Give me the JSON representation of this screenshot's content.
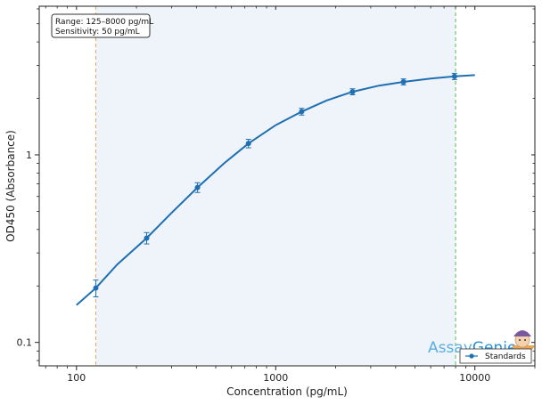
{
  "chart_data": {
    "type": "scatter",
    "title": "",
    "xlabel": "Concentration (pg/mL)",
    "ylabel": "OD450 (Absorbance)",
    "x_scale": "log",
    "y_scale": "log",
    "xlim": [
      65,
      20000
    ],
    "ylim": [
      0.075,
      6.2
    ],
    "x_ticks": [
      {
        "value": 100,
        "label": "100"
      },
      {
        "value": 1000,
        "label": "1000"
      },
      {
        "value": 10000,
        "label": "10000"
      }
    ],
    "y_ticks": [
      {
        "value": 0.1,
        "label": "0.1"
      },
      {
        "value": 1,
        "label": "1"
      }
    ],
    "grid": false,
    "legend_position": "bottom-right",
    "series": [
      {
        "name": "Standards",
        "type": "scatter",
        "color": "#1f6fb2",
        "x": [
          125,
          225,
          405,
          730,
          1350,
          2430,
          4380,
          7900
        ],
        "y": [
          0.195,
          0.36,
          0.67,
          1.15,
          1.7,
          2.17,
          2.45,
          2.62
        ],
        "error": [
          0.02,
          0.025,
          0.04,
          0.06,
          0.07,
          0.08,
          0.09,
          0.1
        ]
      },
      {
        "name": "",
        "type": "line",
        "color": "#1f6fb2",
        "x": [
          100,
          125,
          160,
          225,
          300,
          405,
          550,
          730,
          1000,
          1350,
          1800,
          2430,
          3300,
          4380,
          6000,
          7900,
          10000
        ],
        "y": [
          0.158,
          0.195,
          0.26,
          0.36,
          0.49,
          0.67,
          0.9,
          1.15,
          1.44,
          1.7,
          1.95,
          2.17,
          2.34,
          2.45,
          2.55,
          2.62,
          2.66
        ]
      }
    ],
    "shaded_range": {
      "x_min": 125,
      "x_max": 8000,
      "color": "#eef4fa"
    },
    "reference_lines": [
      {
        "x": 125,
        "color": "#e8a656",
        "style": "dashed"
      },
      {
        "x": 8000,
        "color": "#5cb85c",
        "style": "dashed"
      }
    ],
    "annotations": {
      "range_text": "Range: 125–8000 pg/mL",
      "sensitivity_text": "Sensitivity: 50 pg/mL"
    }
  },
  "legend": {
    "label": "Standards"
  },
  "brand": {
    "part1": "Assay",
    "part2": "Genie",
    "color1": "#5aaee0",
    "color2": "#2a8fd0"
  }
}
